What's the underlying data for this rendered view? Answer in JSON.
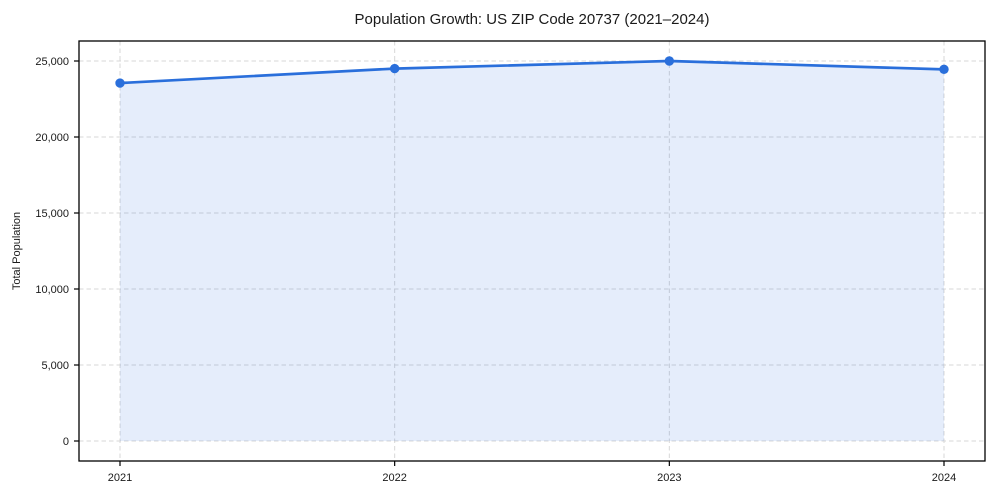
{
  "chart_data": {
    "type": "area",
    "title": "Population Growth: US ZIP Code 20737 (2021–2024)",
    "xlabel": "",
    "ylabel": "Total Population",
    "categories": [
      "2021",
      "2022",
      "2023",
      "2024"
    ],
    "series": [
      {
        "name": "Total Population",
        "values": [
          23550,
          24500,
          25000,
          24450
        ]
      }
    ],
    "ylim": [
      0,
      25000
    ],
    "ytick_values": [
      0,
      5000,
      10000,
      15000,
      20000,
      25000
    ],
    "ytick_labels": [
      "0",
      "5,000",
      "10,000",
      "15,000",
      "20,000",
      "25,000"
    ],
    "grid": true,
    "grid_style": "dashed",
    "legend": "none",
    "marker": "circle",
    "colors": {
      "line": "#2a6fdb",
      "marker": "#2a6fdb",
      "area_fill": "#e8effb",
      "grid": "#d7d7d7",
      "spine": "#000000",
      "text": "#1a1a1a"
    }
  }
}
